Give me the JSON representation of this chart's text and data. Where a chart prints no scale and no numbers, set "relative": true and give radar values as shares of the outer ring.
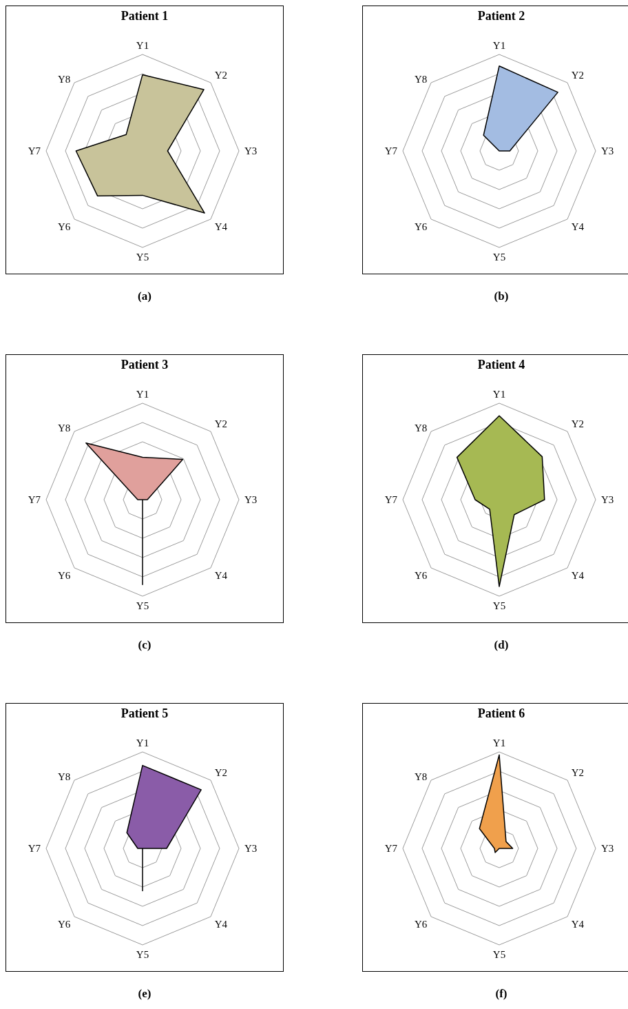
{
  "chart_data": [
    {
      "type": "radar",
      "title": "Patient 1",
      "relative": true,
      "categories": [
        "Y1",
        "Y2",
        "Y3",
        "Y4",
        "Y5",
        "Y6",
        "Y7",
        "Y8"
      ],
      "annotations": [
        "(a)"
      ],
      "series": [
        {
          "color": "#c8c39a",
          "values": [
            0.79,
            0.9,
            0.26,
            0.91,
            0.46,
            0.66,
            0.69,
            0.24
          ]
        }
      ]
    },
    {
      "type": "radar",
      "title": "Patient 2",
      "relative": true,
      "categories": [
        "Y1",
        "Y2",
        "Y3",
        "Y4",
        "Y5",
        "Y6",
        "Y7",
        "Y8"
      ],
      "annotations": [
        "(b)"
      ],
      "series": [
        {
          "color": "#a3bce2",
          "values": [
            0.88,
            0.86,
            0.11,
            0,
            0,
            0,
            0,
            0.23
          ]
        }
      ]
    },
    {
      "type": "radar",
      "title": "Patient 3",
      "relative": true,
      "categories": [
        "Y1",
        "Y2",
        "Y3",
        "Y4",
        "Y5",
        "Y6",
        "Y7",
        "Y8"
      ],
      "annotations": [
        "(c)"
      ],
      "series": [
        {
          "color": "#e0a09c",
          "values": [
            0.44,
            0.59,
            0.05,
            0,
            0.88,
            0,
            0.05,
            0.83
          ]
        }
      ]
    },
    {
      "type": "radar",
      "title": "Patient 4",
      "relative": true,
      "categories": [
        "Y1",
        "Y2",
        "Y3",
        "Y4",
        "Y5",
        "Y6",
        "Y7",
        "Y8"
      ],
      "annotations": [
        "(d)"
      ],
      "series": [
        {
          "color": "#a6b953",
          "values": [
            0.87,
            0.63,
            0.47,
            0.22,
            0.9,
            0.14,
            0.25,
            0.62
          ]
        }
      ]
    },
    {
      "type": "radar",
      "title": "Patient 5",
      "relative": true,
      "categories": [
        "Y1",
        "Y2",
        "Y3",
        "Y4",
        "Y5",
        "Y6",
        "Y7",
        "Y8"
      ],
      "annotations": [
        "(e)"
      ],
      "series": [
        {
          "color": "#8a5ca8",
          "values": [
            0.86,
            0.86,
            0.25,
            0,
            0.44,
            0,
            0.05,
            0.23
          ]
        }
      ]
    },
    {
      "type": "radar",
      "title": "Patient 6",
      "relative": true,
      "categories": [
        "Y1",
        "Y2",
        "Y3",
        "Y4",
        "Y5",
        "Y6",
        "Y7",
        "Y8"
      ],
      "annotations": [
        "(f)"
      ],
      "series": [
        {
          "color": "#f0a04c",
          "values": [
            0.97,
            0.1,
            0.14,
            0,
            0,
            0.06,
            0.05,
            0.29
          ]
        }
      ]
    }
  ]
}
